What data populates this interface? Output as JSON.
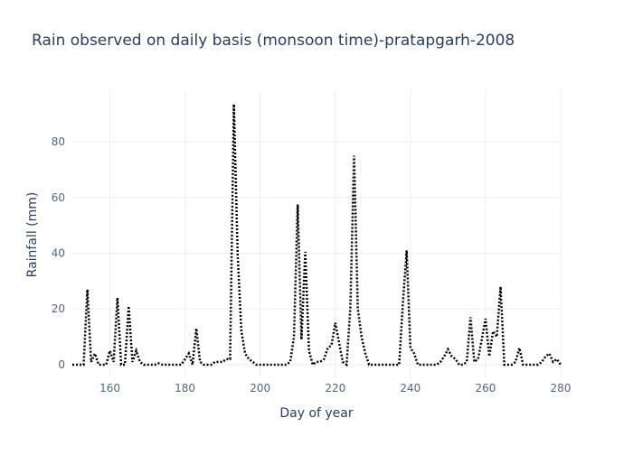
{
  "chart_data": {
    "type": "line",
    "title": "Rain observed on daily basis (monsoon time)-pratapgarh-2008",
    "x_label": "Day of year",
    "y_label": "Rainfall (mm)",
    "x": [
      150,
      151,
      152,
      153,
      154,
      155,
      156,
      157,
      158,
      159,
      160,
      161,
      162,
      163,
      164,
      165,
      166,
      167,
      168,
      169,
      170,
      171,
      172,
      173,
      174,
      175,
      176,
      177,
      178,
      179,
      180,
      181,
      182,
      183,
      184,
      185,
      186,
      187,
      188,
      189,
      190,
      191,
      192,
      193,
      194,
      195,
      196,
      197,
      198,
      199,
      200,
      201,
      202,
      203,
      204,
      205,
      206,
      207,
      208,
      209,
      210,
      211,
      212,
      213,
      214,
      215,
      216,
      217,
      218,
      219,
      220,
      221,
      222,
      223,
      224,
      225,
      226,
      227,
      228,
      229,
      230,
      231,
      232,
      233,
      234,
      235,
      236,
      237,
      238,
      239,
      240,
      241,
      242,
      243,
      244,
      245,
      246,
      247,
      248,
      249,
      250,
      251,
      252,
      253,
      254,
      255,
      256,
      257,
      258,
      259,
      260,
      261,
      262,
      263,
      264,
      265,
      266,
      267,
      268,
      269,
      270,
      271,
      272,
      273,
      274,
      275,
      276,
      277,
      278,
      279,
      280
    ],
    "series": [
      {
        "name": "Rainfall",
        "color": "#000000",
        "values": [
          0,
          0,
          0,
          0,
          27,
          1,
          4,
          0,
          0,
          0,
          5,
          1,
          24,
          0,
          0,
          21,
          1,
          5,
          1,
          0,
          0,
          0,
          0,
          0.5,
          0,
          0,
          0,
          0,
          0,
          0,
          2,
          4,
          0,
          13,
          1,
          0,
          0,
          0,
          1,
          1,
          1,
          2,
          2,
          93.5,
          40,
          12,
          4,
          2,
          1,
          0,
          0,
          0,
          0,
          0,
          0,
          0,
          0,
          0,
          1,
          10,
          57.5,
          9,
          40.5,
          5,
          0,
          1,
          1,
          2,
          6,
          7,
          15,
          8,
          1,
          0,
          20,
          75,
          20,
          10,
          4,
          0,
          0,
          0,
          0,
          0,
          0,
          0,
          0,
          0,
          22,
          41,
          6,
          4,
          0,
          0,
          0,
          0,
          0,
          0,
          1,
          3,
          5.5,
          3,
          2,
          0,
          0,
          1,
          17,
          1,
          2,
          9,
          16.5,
          3,
          12,
          10,
          28,
          0,
          0,
          0,
          1,
          6,
          0,
          0,
          0,
          0,
          0,
          1,
          3,
          4,
          1,
          2,
          0
        ]
      }
    ],
    "xlim": [
      150,
      280
    ],
    "ylim": [
      -5.2,
      98.5
    ],
    "xticks": [
      160,
      180,
      200,
      220,
      240,
      260,
      280
    ],
    "yticks": [
      0,
      20,
      40,
      60,
      80
    ],
    "grid": true
  }
}
